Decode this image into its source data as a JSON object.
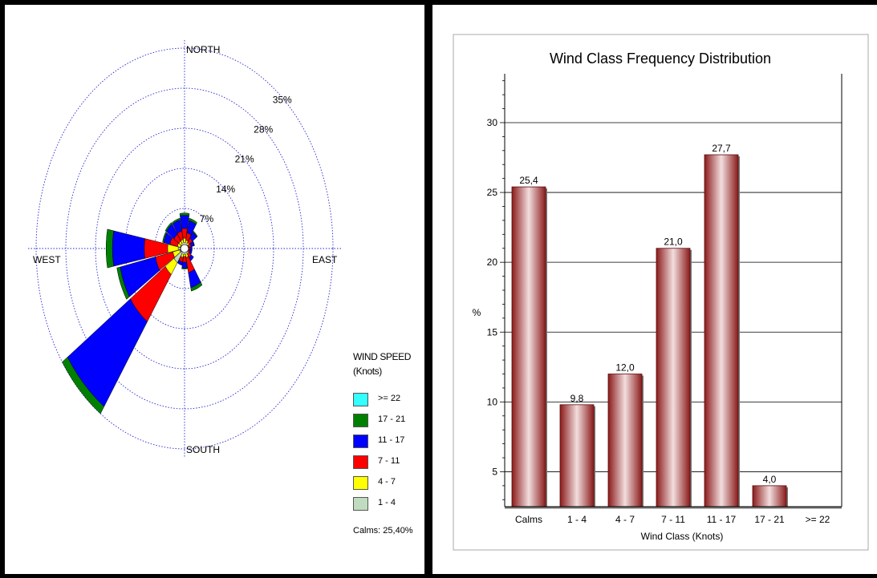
{
  "wind_rose": {
    "directions": {
      "north": "NORTH",
      "south": "SOUTH",
      "east": "EAST",
      "west": "WEST"
    },
    "ring_labels": [
      "7%",
      "14%",
      "21%",
      "28%",
      "35%"
    ],
    "ring_values": [
      7,
      14,
      21,
      28,
      35
    ],
    "legend": {
      "title_line1": "WIND SPEED",
      "title_line2": "(Knots)",
      "items": [
        {
          "label": ">= 22",
          "color": "#33ffff"
        },
        {
          "label": "17 - 21",
          "color": "#008000"
        },
        {
          "label": "11 - 17",
          "color": "#0000ff"
        },
        {
          "label": "7 - 11",
          "color": "#ff0000"
        },
        {
          "label": "4 - 7",
          "color": "#ffff00"
        },
        {
          "label": "1 - 4",
          "color": "#c0dcc0"
        }
      ]
    },
    "calms_text": "Calms: 25,40%",
    "petals": [
      {
        "direction_deg": 0,
        "cumulative": [
          0.7,
          1.8,
          3.5,
          5.8,
          6.2,
          6.2
        ]
      },
      {
        "direction_deg": 22.5,
        "cumulative": [
          0.7,
          1.5,
          2.8,
          5.0,
          5.4,
          5.4
        ]
      },
      {
        "direction_deg": 45,
        "cumulative": [
          0.6,
          1.3,
          2.2,
          3.5,
          3.7,
          3.7
        ]
      },
      {
        "direction_deg": 67.5,
        "cumulative": [
          0.5,
          1.0,
          1.6,
          2.3,
          2.4,
          2.4
        ]
      },
      {
        "direction_deg": 90,
        "cumulative": [
          0.5,
          0.9,
          1.3,
          1.8,
          1.8,
          1.8
        ]
      },
      {
        "direction_deg": 112.5,
        "cumulative": [
          0.5,
          0.9,
          1.3,
          1.8,
          1.8,
          1.8
        ]
      },
      {
        "direction_deg": 135,
        "cumulative": [
          0.6,
          1.2,
          1.9,
          2.6,
          2.6,
          2.6
        ]
      },
      {
        "direction_deg": 157.5,
        "cumulative": [
          0.7,
          1.6,
          4.3,
          7.0,
          7.6,
          7.6
        ]
      },
      {
        "direction_deg": 180,
        "cumulative": [
          0.6,
          1.4,
          2.4,
          3.4,
          3.6,
          3.6
        ]
      },
      {
        "direction_deg": 202.5,
        "cumulative": [
          0.7,
          1.6,
          2.4,
          3.0,
          3.0,
          3.0
        ]
      },
      {
        "direction_deg": 225,
        "cumulative": [
          3.0,
          5.5,
          15.5,
          33.5,
          35.0,
          35.0
        ]
      },
      {
        "direction_deg": 247.5,
        "cumulative": [
          1.2,
          2.8,
          7.0,
          15.5,
          16.3,
          16.3
        ]
      },
      {
        "direction_deg": 270,
        "cumulative": [
          1.5,
          4.0,
          9.5,
          17.0,
          18.5,
          18.5
        ]
      },
      {
        "direction_deg": 292.5,
        "cumulative": [
          0.8,
          1.7,
          3.5,
          5.0,
          5.3,
          5.3
        ]
      },
      {
        "direction_deg": 315,
        "cumulative": [
          0.7,
          1.6,
          3.0,
          5.2,
          5.5,
          5.5
        ]
      },
      {
        "direction_deg": 337.5,
        "cumulative": [
          0.7,
          1.6,
          3.1,
          5.1,
          5.4,
          5.4
        ]
      }
    ]
  },
  "chart_data": {
    "type": "bar",
    "title": "Wind Class Frequency Distribution",
    "xlabel": "Wind Class (Knots)",
    "ylabel": "%",
    "categories": [
      "Calms",
      "1 - 4",
      "4 - 7",
      "7 - 11",
      "11 - 17",
      "17 - 21",
      ">= 22"
    ],
    "values": [
      25.4,
      9.8,
      12.0,
      21.0,
      27.7,
      4.0,
      null
    ],
    "value_labels": [
      "25,4",
      "9,8",
      "12,0",
      "21,0",
      "27,7",
      "4,0",
      ""
    ],
    "yticks": [
      5,
      10,
      15,
      20,
      25,
      30
    ],
    "ylim": [
      2.5,
      33.5
    ],
    "grid": true,
    "bar_color": "#8b1a1a"
  }
}
